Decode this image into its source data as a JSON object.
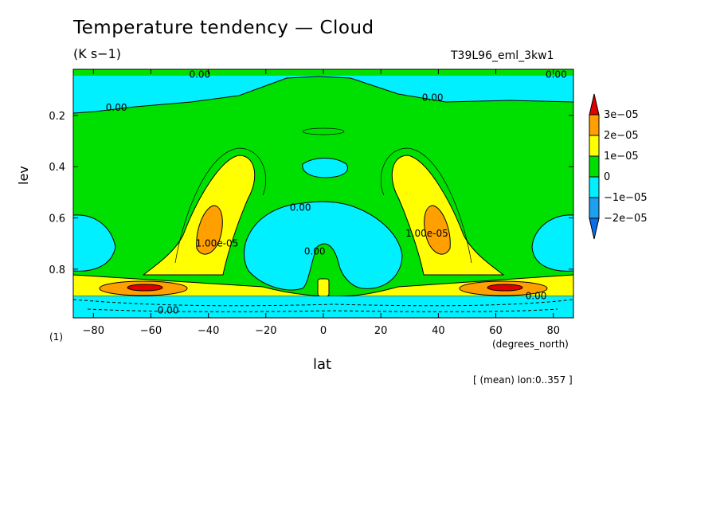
{
  "chart_data": {
    "type": "heatmap",
    "title": "Temperature tendency — Cloud",
    "units": "(K s−1)",
    "run_label": "T39L96_eml_3kw1",
    "xlabel": "lat",
    "xlabel_unit": "(degrees_north)",
    "ylabel": "lev",
    "ylabel_unit": "(1)",
    "footnote": "[ (mean) lon:0..357 ]",
    "xlim": [
      -87,
      87
    ],
    "ylim": [
      0.02,
      0.99
    ],
    "y_inverted": true,
    "x_ticks": [
      -80,
      -60,
      -40,
      -20,
      0,
      20,
      40,
      60,
      80
    ],
    "x_tick_labels": [
      "−80",
      "−60",
      "−40",
      "−20",
      "0",
      "20",
      "40",
      "60",
      "80"
    ],
    "y_ticks": [
      0.2,
      0.4,
      0.6,
      0.8
    ],
    "y_tick_labels": [
      "0.2",
      "0.4",
      "0.6",
      "0.8"
    ],
    "colorbar": {
      "levels": [
        -2e-05,
        -1e-05,
        0,
        1e-05,
        2e-05,
        3e-05
      ],
      "labels": [
        "3e−05",
        "2e−05",
        "1e−05",
        "0",
        "−1e−05",
        "−2e−05"
      ],
      "colors": [
        "#0a6ee8",
        "#1ea0f0",
        "#00f0ff",
        "#00e000",
        "#ffff00",
        "#ffa000",
        "#e00000"
      ],
      "extend": "both"
    },
    "contour_labels": [
      {
        "text": "0.00",
        "lat": -43,
        "lev": 0.04
      },
      {
        "text": "0.00",
        "lat": 81,
        "lev": 0.04
      },
      {
        "text": "0.00",
        "lat": -72,
        "lev": 0.17
      },
      {
        "text": "0.00",
        "lat": 38,
        "lev": 0.13
      },
      {
        "text": "0.00",
        "lat": -8,
        "lev": 0.56
      },
      {
        "text": "0.00",
        "lat": -3,
        "lev": 0.73
      },
      {
        "text": "1.00e-05",
        "lat": -37,
        "lev": 0.7
      },
      {
        "text": "1.00e-05",
        "lat": 36,
        "lev": 0.66
      },
      {
        "text": "0.00",
        "lat": 74,
        "lev": 0.905
      },
      {
        "text": "0.00",
        "lat": -54,
        "lev": 0.96
      }
    ]
  }
}
